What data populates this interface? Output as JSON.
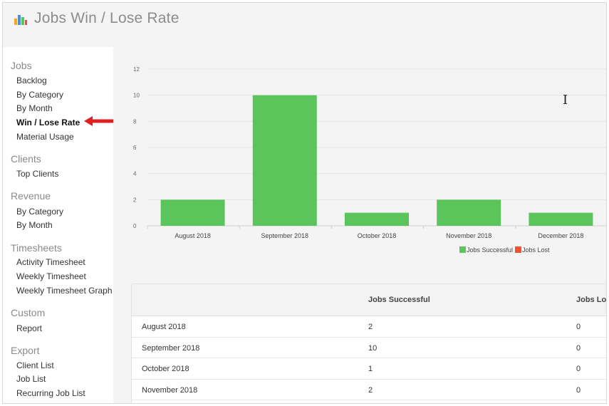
{
  "header": {
    "title": "Jobs Win / Lose Rate",
    "logo_icon": "bar-chart-icon"
  },
  "sidebar": {
    "sections": [
      {
        "title": "Jobs",
        "items": [
          "Backlog",
          "By Category",
          "By Month",
          "Win / Lose Rate",
          "Material Usage"
        ]
      },
      {
        "title": "Clients",
        "items": [
          "Top Clients"
        ]
      },
      {
        "title": "Revenue",
        "items": [
          "By Category",
          "By Month"
        ]
      },
      {
        "title": "Timesheets",
        "items": [
          "Activity Timesheet",
          "Weekly Timesheet",
          "Weekly Timesheet Graph"
        ]
      },
      {
        "title": "Custom",
        "items": [
          "Report"
        ]
      },
      {
        "title": "Export",
        "items": [
          "Client List",
          "Job List",
          "Recurring Job List"
        ]
      }
    ],
    "active_item": "Win / Lose Rate"
  },
  "chart_data": {
    "type": "bar",
    "categories": [
      "August 2018",
      "September 2018",
      "October 2018",
      "November 2018",
      "December 2018"
    ],
    "series": [
      {
        "name": "Jobs Successful",
        "values": [
          2,
          10,
          1,
          2,
          1
        ],
        "color": "#5bc55b"
      },
      {
        "name": "Jobs Lost",
        "values": [
          0,
          0,
          0,
          0,
          0
        ],
        "color": "#f0522e"
      }
    ],
    "yticks": [
      0,
      2,
      4,
      6,
      8,
      10,
      12
    ],
    "ylim": [
      0,
      12
    ],
    "grid": true,
    "legend": "bottom-center"
  },
  "table": {
    "headers": [
      "",
      "Jobs Successful",
      "Jobs Lost"
    ],
    "rows": [
      [
        "August 2018",
        "2",
        "0"
      ],
      [
        "September 2018",
        "10",
        "0"
      ],
      [
        "October 2018",
        "1",
        "0"
      ],
      [
        "November 2018",
        "2",
        "0"
      ]
    ]
  },
  "colors": {
    "accent_bar": "#5bc55b",
    "lost": "#f0522e",
    "annotation_arrow": "#e02020"
  }
}
